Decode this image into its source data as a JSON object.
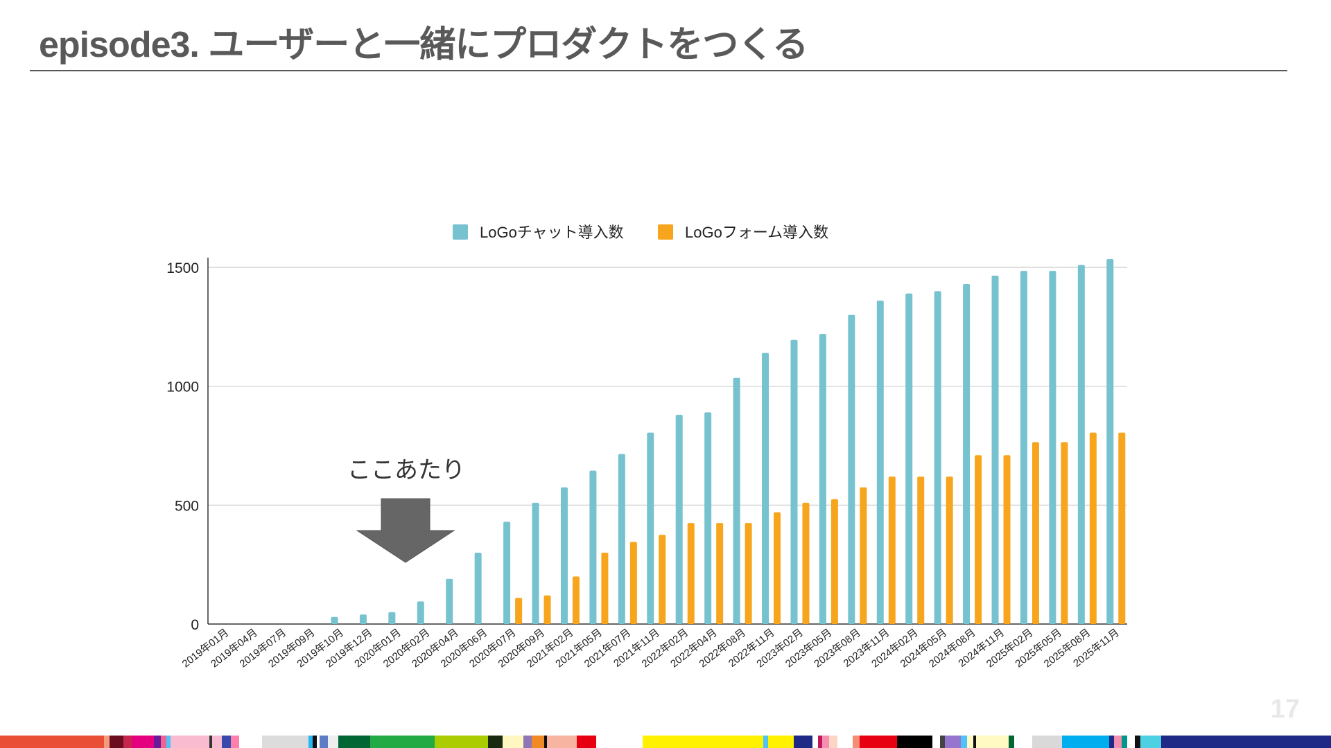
{
  "slide": {
    "title": "episode3. ユーザーと一緒にプロダクトをつくる",
    "page_number": "17"
  },
  "colors": {
    "chat": "#77c2cf",
    "form": "#f7a51c",
    "arrow": "#666666",
    "grid": "#cccccc",
    "text": "#222222"
  },
  "chart_data": {
    "type": "bar",
    "title": "",
    "xlabel": "",
    "ylabel": "",
    "ylim": [
      0,
      1500
    ],
    "yticks": [
      0,
      500,
      1000,
      1500
    ],
    "grid": true,
    "legend_position": "top",
    "categories": [
      "2019年01月",
      "2019年04月",
      "2019年07月",
      "2019年09月",
      "2019年10月",
      "2019年12月",
      "2020年01月",
      "2020年02月",
      "2020年04月",
      "2020年06月",
      "2020年07月",
      "2020年09月",
      "2021年02月",
      "2021年05月",
      "2021年07月",
      "2021年11月",
      "2022年02月",
      "2022年04月",
      "2022年08月",
      "2022年11月",
      "2023年02月",
      "2023年05月",
      "2023年08月",
      "2023年11月",
      "2024年02月",
      "2024年05月",
      "2024年08月",
      "2024年11月",
      "2025年02月",
      "2025年05月",
      "2025年08月",
      "2025年11月"
    ],
    "series": [
      {
        "name": "LoGoチャット導入数",
        "color": "#77c2cf",
        "values": [
          0,
          0,
          0,
          0,
          30,
          40,
          50,
          95,
          190,
          300,
          430,
          510,
          575,
          645,
          715,
          805,
          880,
          890,
          1035,
          1140,
          1195,
          1220,
          1300,
          1360,
          1390,
          1400,
          1430,
          1465,
          1485,
          1485,
          1510,
          1535
        ]
      },
      {
        "name": "LoGoフォーム導入数",
        "color": "#f7a51c",
        "values": [
          0,
          0,
          0,
          0,
          0,
          0,
          0,
          0,
          0,
          0,
          110,
          120,
          200,
          300,
          345,
          375,
          425,
          425,
          425,
          470,
          510,
          525,
          575,
          620,
          620,
          620,
          710,
          710,
          765,
          765,
          805,
          805
        ]
      }
    ],
    "annotations": [
      {
        "text": "ここあたり",
        "points_to": "2020年01月"
      }
    ]
  }
}
